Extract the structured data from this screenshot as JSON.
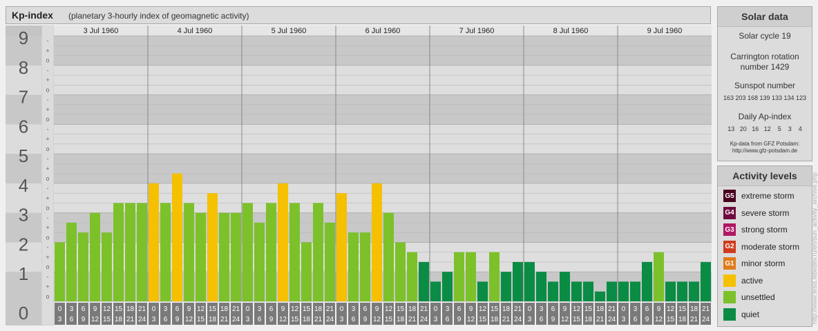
{
  "header": {
    "title": "Kp-index",
    "subtitle": "(planetary 3-hourly index of geomagnetic activity)"
  },
  "chart_data": {
    "type": "bar",
    "ylim": [
      0,
      9
    ],
    "y_ticks": [
      "0",
      "1",
      "2",
      "3",
      "4",
      "5",
      "6",
      "7",
      "8",
      "9"
    ],
    "y_sub_labels": [
      "o",
      "+",
      "-"
    ],
    "days": [
      "3 Jul 1960",
      "4 Jul 1960",
      "5 Jul 1960",
      "6 Jul 1960",
      "7 Jul 1960",
      "8 Jul 1960",
      "9 Jul 1960"
    ],
    "hour_labels_top": [
      "0",
      "3",
      "6",
      "9",
      "12",
      "15",
      "18",
      "21"
    ],
    "hour_labels_bottom": [
      "3",
      "6",
      "9",
      "12",
      "15",
      "18",
      "21",
      "24"
    ],
    "values": [
      [
        2.0,
        2.667,
        2.333,
        3.0,
        2.333,
        3.333,
        3.333,
        3.333
      ],
      [
        4.0,
        3.333,
        4.333,
        3.333,
        3.0,
        3.667,
        3.0,
        3.0
      ],
      [
        3.333,
        2.667,
        3.333,
        4.0,
        3.333,
        2.0,
        3.333,
        2.667
      ],
      [
        3.667,
        2.333,
        2.333,
        4.0,
        3.0,
        2.0,
        1.667,
        1.333
      ],
      [
        0.667,
        1.0,
        1.667,
        1.667,
        0.667,
        1.667,
        1.0,
        1.333
      ],
      [
        1.333,
        1.0,
        0.667,
        1.0,
        0.667,
        0.667,
        0.333,
        0.667
      ],
      [
        0.667,
        0.667,
        1.333,
        1.667,
        0.667,
        0.667,
        0.667,
        1.333
      ]
    ],
    "colors": {
      "quiet": "#0a8c45",
      "unsettled": "#7cc12a",
      "active": "#f5c000",
      "minor_storm": "#e07b1a",
      "moderate_storm": "#d03a1e",
      "strong_storm": "#b01863",
      "severe_storm": "#6e0a3e",
      "extreme_storm": "#4a0020"
    }
  },
  "solar": {
    "title": "Solar data",
    "cycle": "Solar cycle 19",
    "carrington_line1": "Carrington rotation",
    "carrington_line2": "number 1429",
    "sunspot_title": "Sunspot number",
    "sunspot_values": "163 203 168 139 133 134 123",
    "ap_title": "Daily Ap-index",
    "ap_values": "13   20   16   12    5    3    4",
    "source_line1": "Kp-data from GFZ Potsdam:",
    "source_line2": "http://www.gfz-potsdam.de"
  },
  "activity": {
    "title": "Activity levels",
    "items": [
      {
        "badge": "G5",
        "label": "extreme storm",
        "color": "#4a0020"
      },
      {
        "badge": "G4",
        "label": "severe storm",
        "color": "#6e0a3e"
      },
      {
        "badge": "G3",
        "label": "strong storm",
        "color": "#b01863"
      },
      {
        "badge": "G2",
        "label": "moderate storm",
        "color": "#d03a1e"
      },
      {
        "badge": "G1",
        "label": "minor storm",
        "color": "#e07b1a"
      },
      {
        "badge": "",
        "label": "active",
        "color": "#f5c000"
      },
      {
        "badge": "",
        "label": "unsettled",
        "color": "#7cc12a"
      },
      {
        "badge": "",
        "label": "quiet",
        "color": "#0a8c45"
      }
    ]
  },
  "credit": "http://www.tesis.lebedev.ru/en/sun_activity_archive.php"
}
